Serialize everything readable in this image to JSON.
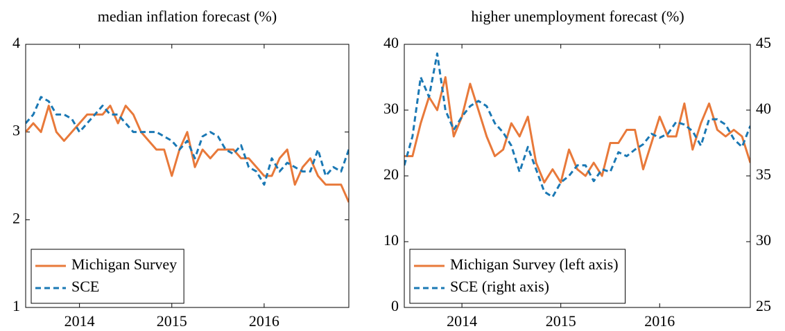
{
  "chart_data": [
    {
      "type": "line",
      "title": "median inflation forecast (%)",
      "x": [
        2013.417,
        2013.5,
        2013.583,
        2013.667,
        2013.75,
        2013.833,
        2013.917,
        2014.0,
        2014.083,
        2014.167,
        2014.25,
        2014.333,
        2014.417,
        2014.5,
        2014.583,
        2014.667,
        2014.75,
        2014.833,
        2014.917,
        2015.0,
        2015.083,
        2015.167,
        2015.25,
        2015.333,
        2015.417,
        2015.5,
        2015.583,
        2015.667,
        2015.75,
        2015.833,
        2015.917,
        2016.0,
        2016.083,
        2016.167,
        2016.25,
        2016.333,
        2016.417,
        2016.5,
        2016.583,
        2016.667,
        2016.75,
        2016.833,
        2016.917
      ],
      "xlim": [
        2013.417,
        2016.917
      ],
      "xticks": [
        2014,
        2015,
        2016
      ],
      "ylim": [
        1,
        4
      ],
      "yticks": [
        1,
        2,
        3,
        4
      ],
      "legend": "lower left",
      "series": [
        {
          "name": "Michigan Survey",
          "color": "#e8793a",
          "style": "solid",
          "values": [
            3.0,
            3.1,
            3.0,
            3.3,
            3.0,
            2.9,
            3.0,
            3.1,
            3.2,
            3.2,
            3.2,
            3.3,
            3.1,
            3.3,
            3.2,
            3.0,
            2.9,
            2.8,
            2.8,
            2.5,
            2.8,
            3.0,
            2.6,
            2.8,
            2.7,
            2.8,
            2.8,
            2.8,
            2.7,
            2.7,
            2.6,
            2.5,
            2.5,
            2.7,
            2.8,
            2.4,
            2.6,
            2.7,
            2.5,
            2.4,
            2.4,
            2.4,
            2.2
          ]
        },
        {
          "name": "SCE",
          "color": "#1a78b4",
          "style": "dashed",
          "values": [
            3.1,
            3.2,
            3.4,
            3.35,
            3.2,
            3.2,
            3.15,
            3.0,
            3.1,
            3.2,
            3.3,
            3.2,
            3.2,
            3.1,
            3.0,
            3.0,
            3.0,
            3.0,
            2.95,
            2.9,
            2.8,
            2.9,
            2.7,
            2.95,
            3.0,
            2.95,
            2.8,
            2.75,
            2.85,
            2.6,
            2.55,
            2.4,
            2.7,
            2.55,
            2.65,
            2.6,
            2.55,
            2.55,
            2.8,
            2.5,
            2.6,
            2.55,
            2.8
          ]
        }
      ]
    },
    {
      "type": "line",
      "title": "higher unemployment forecast (%)",
      "x": [
        2013.417,
        2013.5,
        2013.583,
        2013.667,
        2013.75,
        2013.833,
        2013.917,
        2014.0,
        2014.083,
        2014.167,
        2014.25,
        2014.333,
        2014.417,
        2014.5,
        2014.583,
        2014.667,
        2014.75,
        2014.833,
        2014.917,
        2015.0,
        2015.083,
        2015.167,
        2015.25,
        2015.333,
        2015.417,
        2015.5,
        2015.583,
        2015.667,
        2015.75,
        2015.833,
        2015.917,
        2016.0,
        2016.083,
        2016.167,
        2016.25,
        2016.333,
        2016.417,
        2016.5,
        2016.583,
        2016.667,
        2016.75,
        2016.833,
        2016.917
      ],
      "xlim": [
        2013.417,
        2016.917
      ],
      "xticks": [
        2014,
        2015,
        2016
      ],
      "ylim": [
        0,
        40
      ],
      "yticks": [
        0,
        10,
        20,
        30,
        40
      ],
      "y2lim": [
        25,
        45
      ],
      "y2ticks": [
        25,
        30,
        35,
        40,
        45
      ],
      "legend": "lower left",
      "series": [
        {
          "name": "Michigan Survey (left axis)",
          "color": "#e8793a",
          "style": "solid",
          "values": [
            23,
            23,
            28,
            32,
            30,
            35,
            26,
            29,
            34,
            30,
            26,
            23,
            24,
            28,
            26,
            29,
            22,
            19,
            21,
            19,
            24,
            21,
            20,
            22,
            20,
            25,
            25,
            27,
            27,
            21,
            25,
            29,
            26,
            26,
            31,
            24,
            28,
            31,
            27,
            26,
            27,
            26,
            22
          ]
        },
        {
          "name": "SCE (right axis)",
          "color": "#1a78b4",
          "style": "dashed",
          "axis": "y2",
          "values": [
            35.8,
            38,
            42.5,
            41,
            44.3,
            40,
            38.5,
            39.5,
            40.3,
            40.7,
            40.3,
            39,
            38.3,
            37.3,
            35.3,
            37.2,
            35.5,
            33.8,
            33.4,
            34.5,
            35,
            35.8,
            35.8,
            34.6,
            35.5,
            35.3,
            36.8,
            36.5,
            37,
            37.4,
            38.2,
            37.9,
            38.2,
            39.1,
            38.9,
            38.4,
            37.3,
            39.3,
            39.3,
            38.9,
            37.8,
            37.2,
            38.8
          ]
        }
      ]
    }
  ]
}
